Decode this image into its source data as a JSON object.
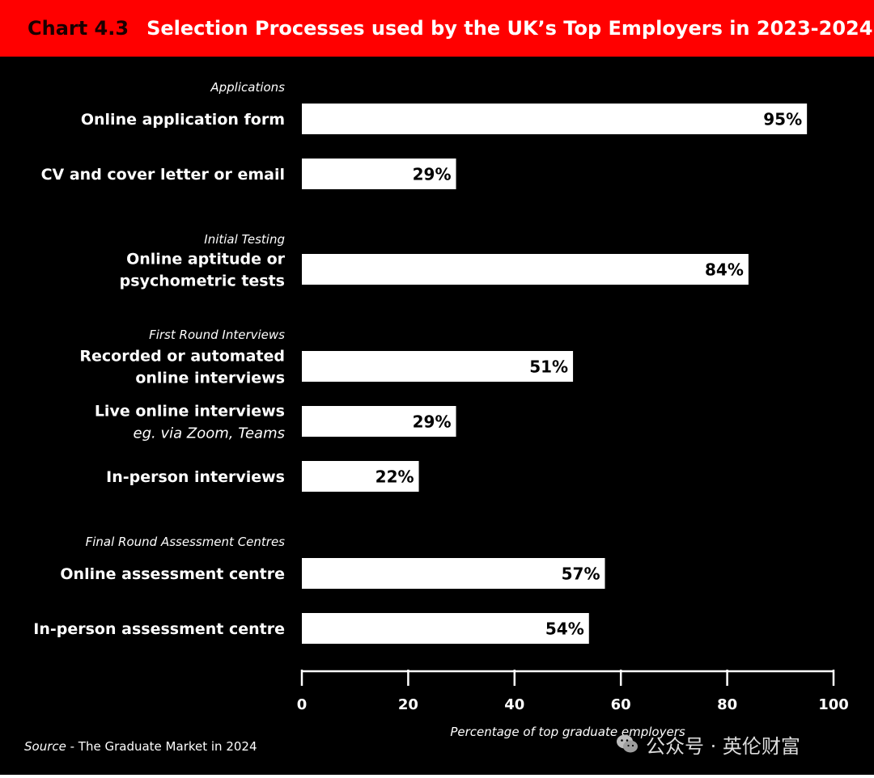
{
  "header": {
    "chart_number": "Chart 4.3",
    "title": "Selection Processes used by the UK’s Top Employers in 2023-2024"
  },
  "source": {
    "label": "Source",
    "text": " - The Graduate Market in 2024"
  },
  "watermark": {
    "text": "公众号 · 英伦财富",
    "icon": "wechat-icon"
  },
  "colors": {
    "header_bg": "#ff0000",
    "background": "#000000",
    "bar": "#ffffff",
    "text": "#ffffff"
  },
  "chart_data": {
    "type": "bar",
    "orientation": "horizontal",
    "title": "Selection Processes used by the UK’s Top Employers in 2023-2024",
    "xlabel": "Percentage of top graduate employers",
    "xlim": [
      0,
      100
    ],
    "xticks": [
      0,
      20,
      40,
      60,
      80,
      100
    ],
    "value_suffix": "%",
    "groups": [
      {
        "name": "Applications",
        "items": [
          {
            "label": [
              "Online application form"
            ],
            "value": 95
          },
          {
            "label": [
              "CV and cover letter or email"
            ],
            "value": 29
          }
        ]
      },
      {
        "name": "Initial Testing",
        "items": [
          {
            "label": [
              "Online aptitude or",
              "psychometric tests"
            ],
            "value": 84
          }
        ]
      },
      {
        "name": "First Round Interviews",
        "items": [
          {
            "label": [
              "Recorded or automated",
              "online interviews"
            ],
            "value": 51
          },
          {
            "label": [
              "Live online interviews"
            ],
            "sublabel": "eg. via Zoom, Teams",
            "value": 29
          },
          {
            "label": [
              "In-person interviews"
            ],
            "value": 22
          }
        ]
      },
      {
        "name": "Final Round Assessment Centres",
        "items": [
          {
            "label": [
              "Online assessment centre"
            ],
            "value": 57
          },
          {
            "label": [
              "In-person assessment centre"
            ],
            "value": 54
          }
        ]
      }
    ]
  }
}
